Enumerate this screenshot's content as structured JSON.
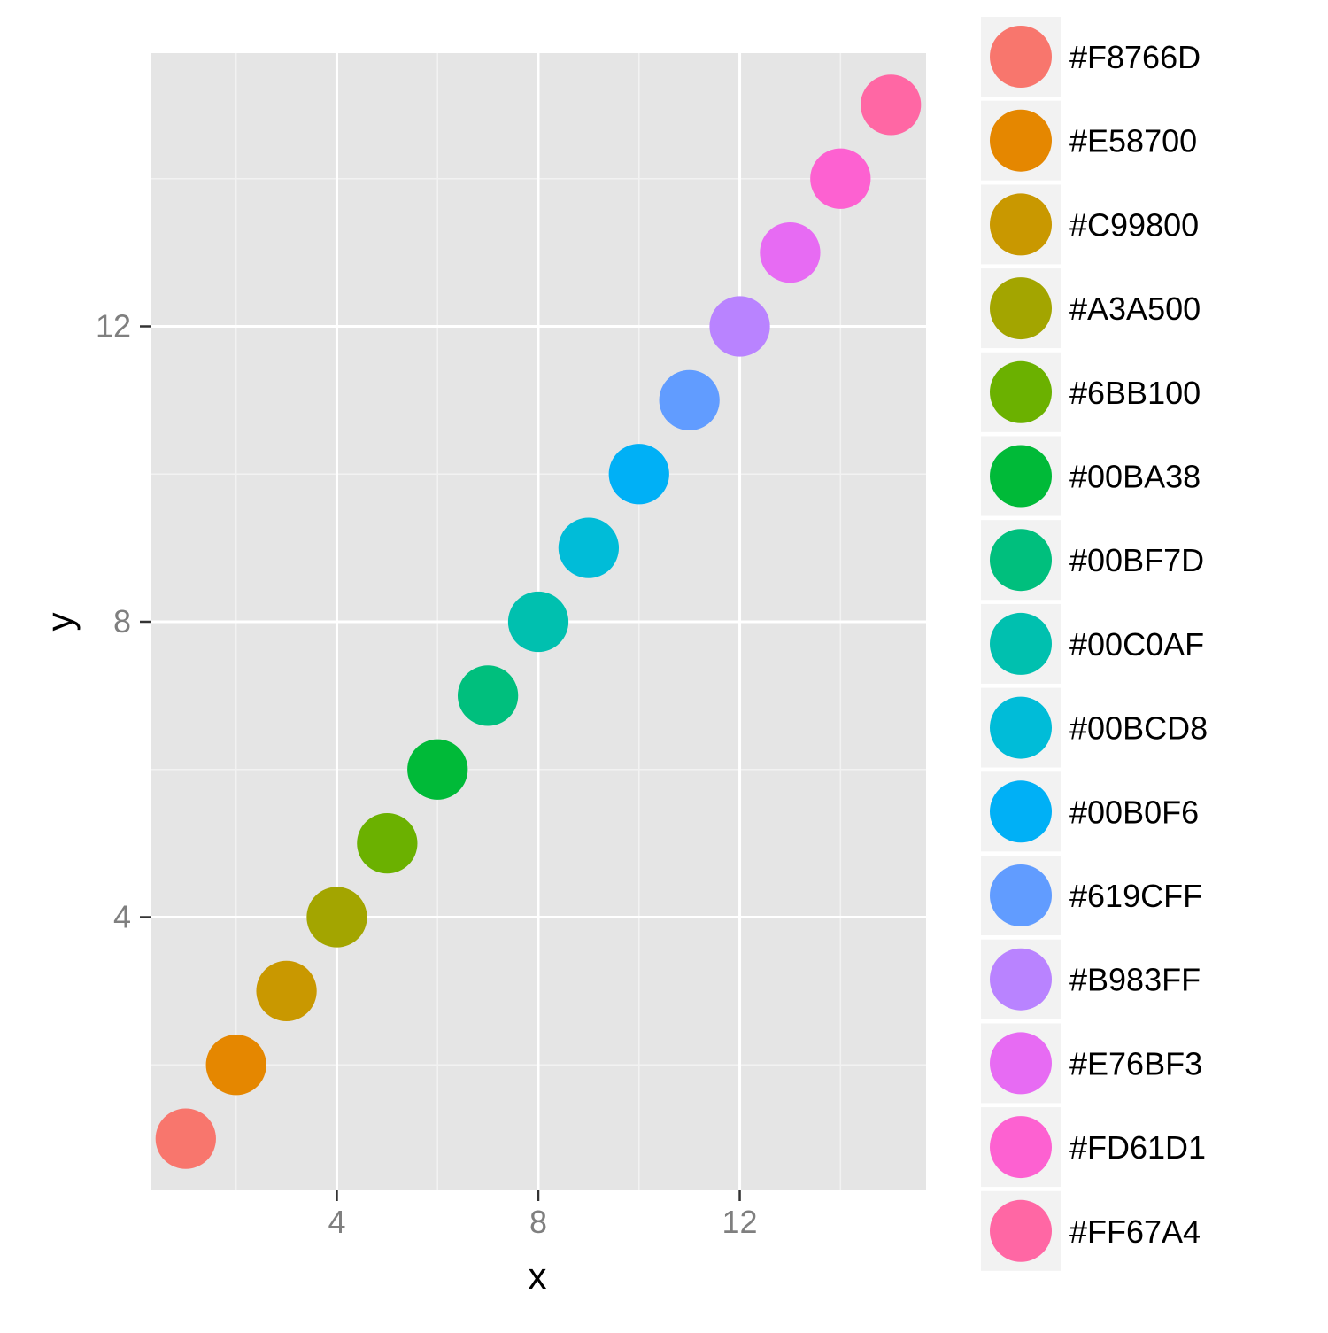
{
  "chart_data": {
    "type": "scatter",
    "xlabel": "x",
    "ylabel": "y",
    "xlim": [
      0.3,
      15.7
    ],
    "ylim": [
      0.3,
      15.7
    ],
    "x_ticks": [
      4,
      8,
      12
    ],
    "y_ticks": [
      4,
      8,
      12
    ],
    "x_minor": [
      2,
      6,
      10,
      14
    ],
    "y_minor": [
      2,
      6,
      10,
      14
    ],
    "grid": true,
    "legend_position": "right",
    "point_radius_units": 0.6,
    "points": [
      {
        "x": 1,
        "y": 1,
        "color": "#F8766D",
        "label": "#F8766D"
      },
      {
        "x": 2,
        "y": 2,
        "color": "#E58700",
        "label": "#E58700"
      },
      {
        "x": 3,
        "y": 3,
        "color": "#C99800",
        "label": "#C99800"
      },
      {
        "x": 4,
        "y": 4,
        "color": "#A3A500",
        "label": "#A3A500"
      },
      {
        "x": 5,
        "y": 5,
        "color": "#6BB100",
        "label": "#6BB100"
      },
      {
        "x": 6,
        "y": 6,
        "color": "#00BA38",
        "label": "#00BA38"
      },
      {
        "x": 7,
        "y": 7,
        "color": "#00BF7D",
        "label": "#00BF7D"
      },
      {
        "x": 8,
        "y": 8,
        "color": "#00C0AF",
        "label": "#00C0AF"
      },
      {
        "x": 9,
        "y": 9,
        "color": "#00BCD8",
        "label": "#00BCD8"
      },
      {
        "x": 10,
        "y": 10,
        "color": "#00B0F6",
        "label": "#00B0F6"
      },
      {
        "x": 11,
        "y": 11,
        "color": "#619CFF",
        "label": "#619CFF"
      },
      {
        "x": 12,
        "y": 12,
        "color": "#B983FF",
        "label": "#B983FF"
      },
      {
        "x": 13,
        "y": 13,
        "color": "#E76BF3",
        "label": "#E76BF3"
      },
      {
        "x": 14,
        "y": 14,
        "color": "#FD61D1",
        "label": "#FD61D1"
      },
      {
        "x": 15,
        "y": 15,
        "color": "#FF67A4",
        "label": "#FF67A4"
      }
    ]
  }
}
